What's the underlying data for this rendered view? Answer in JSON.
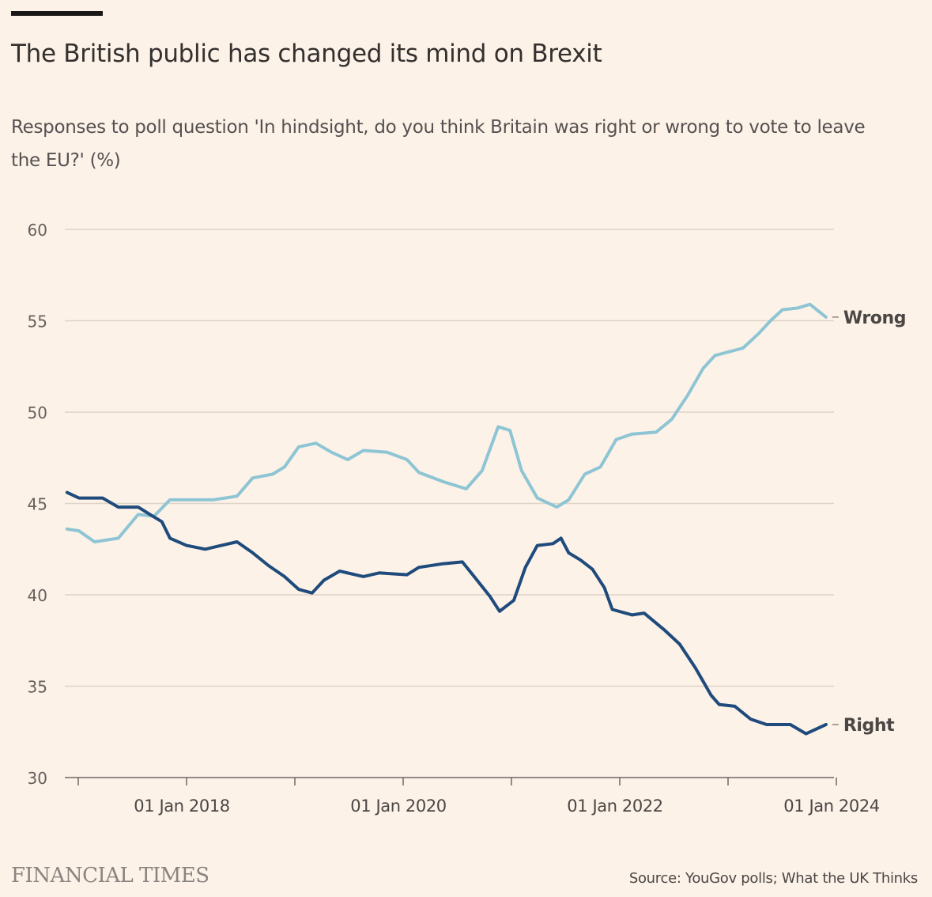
{
  "title": "The British public has changed its mind on Brexit",
  "subtitle": "Responses to poll question 'In hindsight, do you think Britain was right or wrong to vote to leave the EU?' (%)",
  "brand": "FINANCIAL TIMES",
  "source": "Source: YouGov polls; What the UK Thinks",
  "colors": {
    "background": "#fdf2e8",
    "wrong": "#8ec5d4",
    "right": "#1f4b7c",
    "grid": "#ddd3c9"
  },
  "chart_data": {
    "type": "line",
    "title": "The British public has changed its mind on Brexit",
    "xlabel": "",
    "ylabel": "",
    "ylim": [
      30,
      60
    ],
    "yticks": [
      30,
      35,
      40,
      45,
      50,
      55,
      60
    ],
    "xlim": [
      "2016-11-01",
      "2024-01-01"
    ],
    "xticks": [
      {
        "date": "2018-01-01",
        "label": "01 Jan 2018"
      },
      {
        "date": "2020-01-01",
        "label": "01 Jan 2020"
      },
      {
        "date": "2022-01-01",
        "label": "01 Jan 2022"
      },
      {
        "date": "2024-01-01",
        "label": "01 Jan 2024"
      }
    ],
    "minor_xticks": [
      "2017-01-01",
      "2019-01-01",
      "2021-01-01",
      "2023-01-01"
    ],
    "grid": true,
    "legend": "direct labels at line ends (right)",
    "series": [
      {
        "name": "Wrong",
        "color": "#8ec5d4",
        "points": [
          [
            "2016-11-24",
            43.6
          ],
          [
            "2017-01-03",
            43.5
          ],
          [
            "2017-02-25",
            42.9
          ],
          [
            "2017-05-16",
            43.1
          ],
          [
            "2017-07-22",
            44.4
          ],
          [
            "2017-09-13",
            44.3
          ],
          [
            "2017-11-06",
            45.2
          ],
          [
            "2018-01-01",
            45.2
          ],
          [
            "2018-04-01",
            45.2
          ],
          [
            "2018-06-20",
            45.4
          ],
          [
            "2018-08-12",
            46.4
          ],
          [
            "2018-10-18",
            46.6
          ],
          [
            "2018-11-27",
            47.0
          ],
          [
            "2019-01-14",
            48.1
          ],
          [
            "2019-03-13",
            48.3
          ],
          [
            "2019-05-05",
            47.8
          ],
          [
            "2019-06-28",
            47.4
          ],
          [
            "2019-08-20",
            47.9
          ],
          [
            "2019-11-08",
            47.8
          ],
          [
            "2020-01-14",
            47.4
          ],
          [
            "2020-02-23",
            46.7
          ],
          [
            "2020-05-14",
            46.2
          ],
          [
            "2020-08-01",
            45.8
          ],
          [
            "2020-09-24",
            46.8
          ],
          [
            "2020-11-17",
            49.2
          ],
          [
            "2020-12-27",
            49.0
          ],
          [
            "2021-02-04",
            46.8
          ],
          [
            "2021-03-29",
            45.3
          ],
          [
            "2021-06-03",
            44.8
          ],
          [
            "2021-07-13",
            45.2
          ],
          [
            "2021-09-05",
            46.6
          ],
          [
            "2021-10-28",
            47.0
          ],
          [
            "2021-12-20",
            48.5
          ],
          [
            "2022-02-12",
            48.8
          ],
          [
            "2022-05-03",
            48.9
          ],
          [
            "2022-06-25",
            49.6
          ],
          [
            "2022-08-17",
            50.9
          ],
          [
            "2022-10-09",
            52.4
          ],
          [
            "2022-11-18",
            53.1
          ],
          [
            "2023-02-20",
            53.5
          ],
          [
            "2023-04-14",
            54.3
          ],
          [
            "2023-05-24",
            55.0
          ],
          [
            "2023-07-03",
            55.6
          ],
          [
            "2023-08-25",
            55.7
          ],
          [
            "2023-10-04",
            55.9
          ],
          [
            "2023-11-27",
            55.2
          ]
        ]
      },
      {
        "name": "Right",
        "color": "#1f4b7c",
        "points": [
          [
            "2016-11-24",
            45.6
          ],
          [
            "2017-01-03",
            45.3
          ],
          [
            "2017-03-24",
            45.3
          ],
          [
            "2017-05-16",
            44.8
          ],
          [
            "2017-07-22",
            44.8
          ],
          [
            "2017-08-31",
            44.4
          ],
          [
            "2017-10-10",
            44.0
          ],
          [
            "2017-11-06",
            43.1
          ],
          [
            "2018-01-01",
            42.7
          ],
          [
            "2018-03-05",
            42.5
          ],
          [
            "2018-04-28",
            42.7
          ],
          [
            "2018-06-20",
            42.9
          ],
          [
            "2018-08-12",
            42.3
          ],
          [
            "2018-10-04",
            41.6
          ],
          [
            "2018-11-27",
            41.0
          ],
          [
            "2019-01-14",
            40.3
          ],
          [
            "2019-02-28",
            40.1
          ],
          [
            "2019-04-09",
            40.8
          ],
          [
            "2019-06-01",
            41.3
          ],
          [
            "2019-08-20",
            41.0
          ],
          [
            "2019-10-12",
            41.2
          ],
          [
            "2020-01-14",
            41.1
          ],
          [
            "2020-02-23",
            41.5
          ],
          [
            "2020-05-14",
            41.7
          ],
          [
            "2020-07-19",
            41.8
          ],
          [
            "2020-08-28",
            41.0
          ],
          [
            "2020-10-21",
            39.9
          ],
          [
            "2020-11-22",
            39.1
          ],
          [
            "2021-01-09",
            39.7
          ],
          [
            "2021-02-17",
            41.5
          ],
          [
            "2021-03-29",
            42.7
          ],
          [
            "2021-05-21",
            42.8
          ],
          [
            "2021-06-17",
            43.1
          ],
          [
            "2021-07-13",
            42.3
          ],
          [
            "2021-08-22",
            41.9
          ],
          [
            "2021-10-01",
            41.4
          ],
          [
            "2021-11-10",
            40.4
          ],
          [
            "2021-12-07",
            39.2
          ],
          [
            "2022-02-12",
            38.9
          ],
          [
            "2022-03-24",
            39.0
          ],
          [
            "2022-05-30",
            38.1
          ],
          [
            "2022-07-22",
            37.3
          ],
          [
            "2022-09-13",
            36.0
          ],
          [
            "2022-11-05",
            34.5
          ],
          [
            "2022-12-02",
            34.0
          ],
          [
            "2023-01-24",
            33.9
          ],
          [
            "2023-03-18",
            33.2
          ],
          [
            "2023-05-11",
            32.9
          ],
          [
            "2023-07-30",
            32.9
          ],
          [
            "2023-09-21",
            32.4
          ],
          [
            "2023-10-18",
            32.6
          ],
          [
            "2023-11-27",
            32.9
          ]
        ]
      }
    ]
  }
}
